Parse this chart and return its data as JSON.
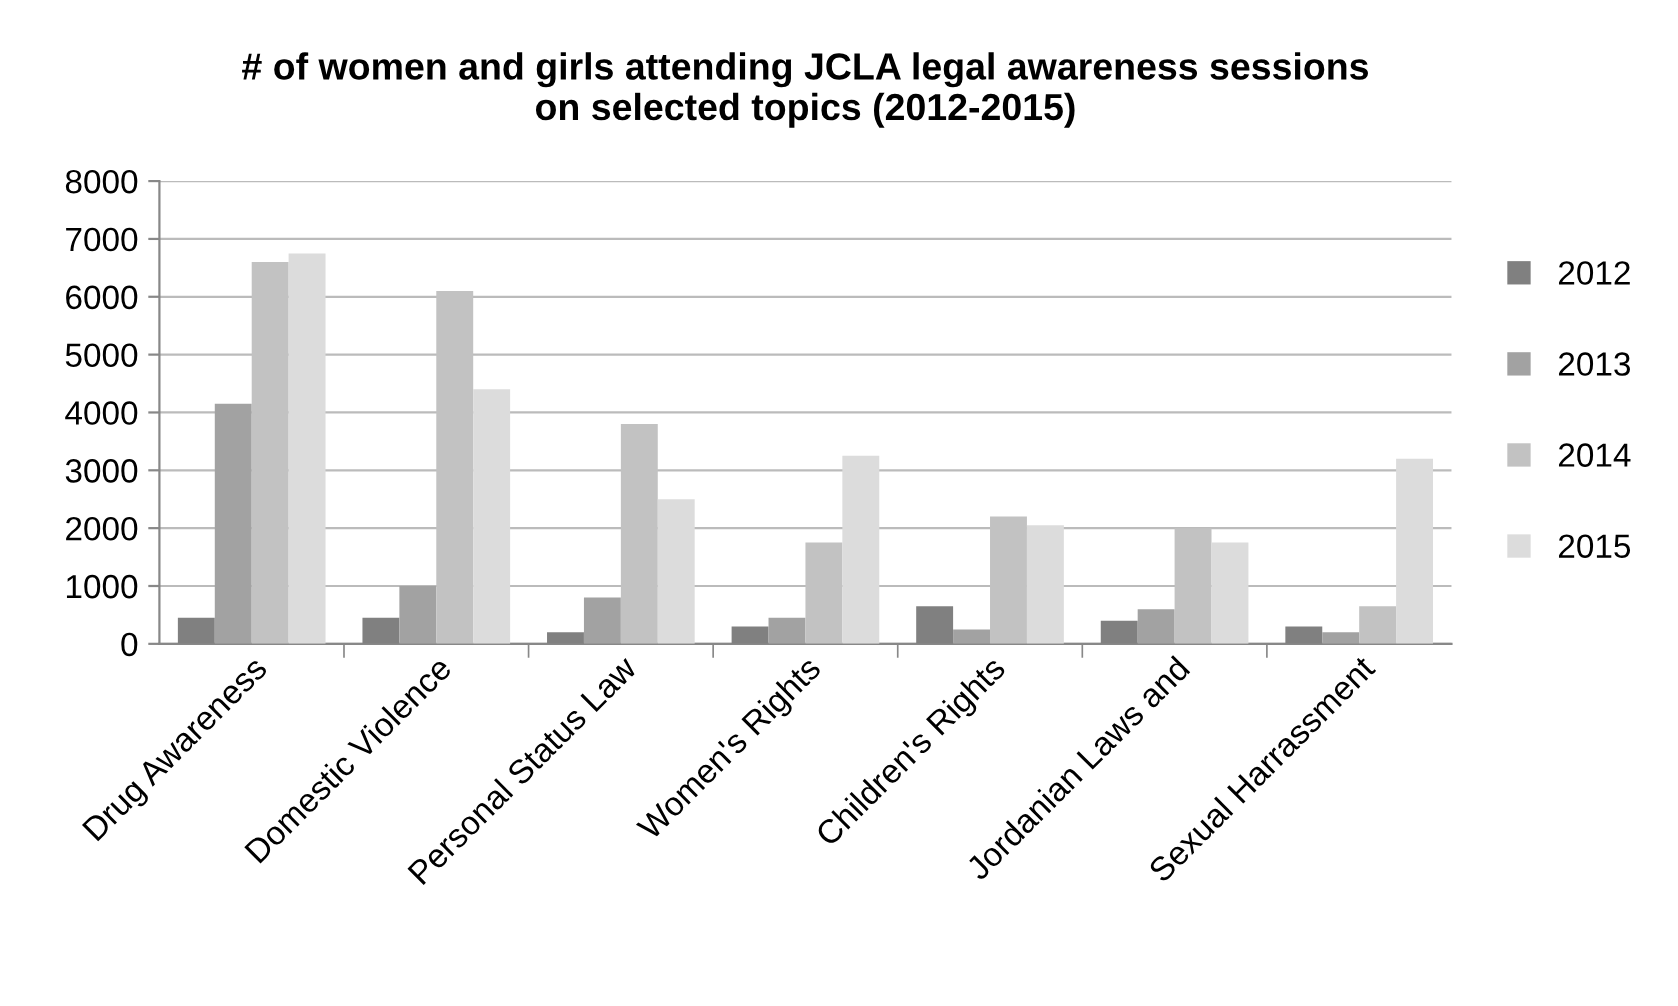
{
  "chart_data": {
    "type": "bar",
    "title": "# of women and girls attending JCLA legal awareness sessions\non selected topics (2012-2015)",
    "categories": [
      "Drug Awareness",
      "Domestic Violence",
      "Personal Status Law",
      "Women's Rights",
      "Children's Rights",
      "Jordanian Laws and",
      "Sexual Harrassment"
    ],
    "series": [
      {
        "name": "2012",
        "color": "#808080",
        "values": [
          450,
          450,
          200,
          300,
          650,
          400,
          300
        ]
      },
      {
        "name": "2013",
        "color": "#a2a2a2",
        "values": [
          4150,
          1000,
          800,
          450,
          250,
          600,
          200
        ]
      },
      {
        "name": "2014",
        "color": "#c2c2c2",
        "values": [
          6600,
          6100,
          3800,
          1750,
          2200,
          2000,
          650
        ]
      },
      {
        "name": "2015",
        "color": "#dcdcdc",
        "values": [
          6750,
          4400,
          2500,
          3250,
          2050,
          1750,
          3200
        ]
      }
    ],
    "ylim": [
      0,
      8000
    ],
    "yticks": [
      0,
      1000,
      2000,
      3000,
      4000,
      5000,
      6000,
      7000,
      8000
    ],
    "grid": "y",
    "legend": "right"
  }
}
